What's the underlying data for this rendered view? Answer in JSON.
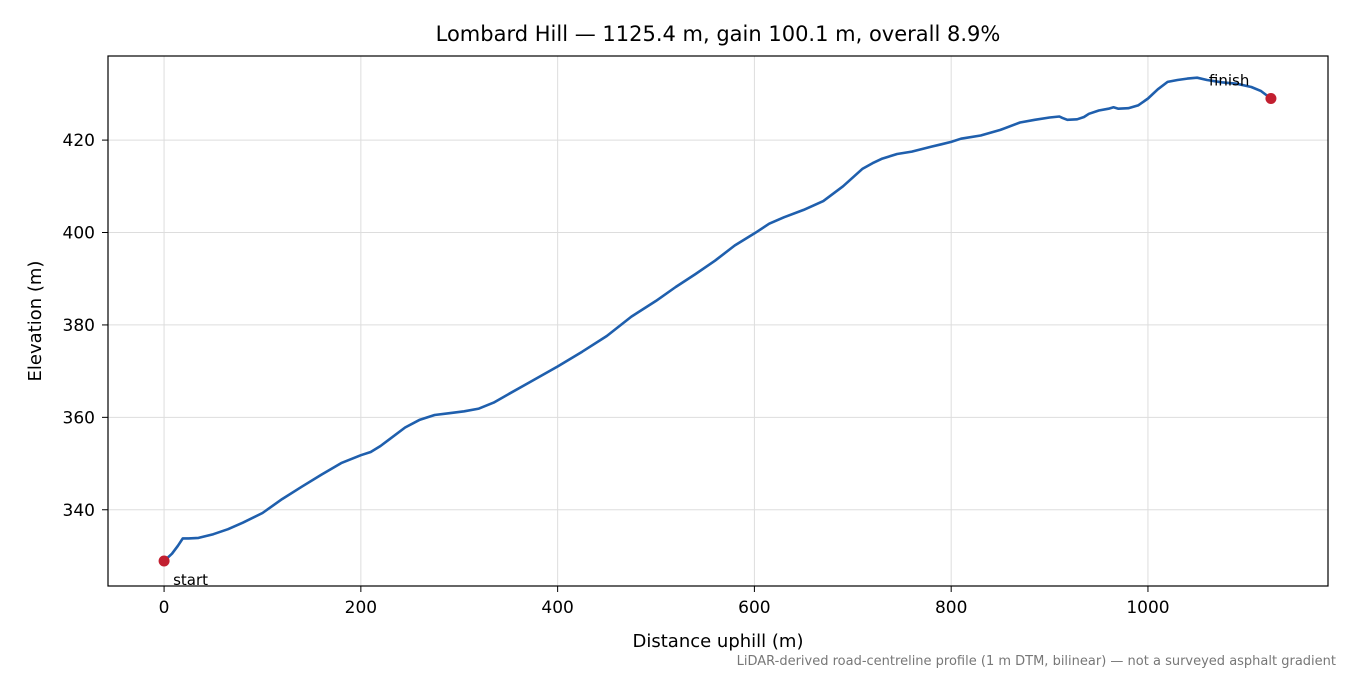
{
  "chart_data": {
    "type": "line",
    "title": "Lombard Hill — 1125.4 m, gain 100.1 m, overall 8.9%",
    "xlabel": "Distance uphill (m)",
    "ylabel": "Elevation (m)",
    "xlim": [
      -57,
      1183
    ],
    "ylim": [
      323.5,
      438.2
    ],
    "x_ticks": [
      0,
      200,
      400,
      600,
      800,
      1000
    ],
    "y_ticks": [
      340,
      360,
      380,
      400,
      420
    ],
    "grid": true,
    "line_color": "#1f5fad",
    "marker_color": "#c21f30",
    "series": [
      {
        "x": [
          0,
          8,
          14,
          19,
          25,
          35,
          50,
          65,
          80,
          100,
          120,
          140,
          160,
          180,
          200,
          210,
          220,
          230,
          245,
          260,
          275,
          290,
          305,
          320,
          335,
          350,
          375,
          400,
          425,
          450,
          475,
          500,
          520,
          540,
          560,
          580,
          600,
          615,
          630,
          650,
          670,
          690,
          710,
          720,
          730,
          745,
          760,
          780,
          790,
          800,
          810,
          830,
          850,
          870,
          885,
          900,
          910,
          913,
          918,
          928,
          935,
          940,
          950,
          960,
          965,
          970,
          980,
          990,
          1000,
          1010,
          1020,
          1030,
          1040,
          1050,
          1060,
          1075,
          1090,
          1105,
          1115,
          1125
        ],
        "y": [
          328.9,
          330.5,
          332.2,
          333.8,
          333.8,
          333.9,
          334.7,
          335.8,
          337.2,
          339.3,
          342.3,
          345.0,
          347.6,
          350.1,
          351.8,
          352.5,
          353.8,
          355.4,
          357.8,
          359.5,
          360.5,
          360.9,
          361.3,
          361.9,
          363.2,
          365.0,
          368.0,
          371.0,
          374.2,
          377.6,
          381.8,
          385.2,
          388.2,
          391.0,
          393.9,
          397.2,
          399.8,
          401.9,
          403.3,
          404.9,
          406.8,
          410.0,
          413.8,
          415.0,
          416.0,
          417.0,
          417.5,
          418.6,
          419.1,
          419.6,
          420.3,
          421.0,
          422.2,
          423.8,
          424.4,
          424.9,
          425.1,
          424.8,
          424.4,
          424.5,
          425.0,
          425.7,
          426.4,
          426.8,
          427.1,
          426.8,
          426.9,
          427.5,
          429.0,
          431.0,
          432.6,
          433.0,
          433.3,
          433.5,
          433.0,
          432.5,
          432.2,
          431.5,
          430.6,
          429.0
        ]
      }
    ],
    "markers": [
      {
        "label": "start",
        "x": 0,
        "y": 328.9
      },
      {
        "label": "finish",
        "x": 1125,
        "y": 429.0
      }
    ],
    "footnote": "LiDAR-derived road-centreline profile (1 m DTM, bilinear) — not a surveyed asphalt gradient"
  }
}
